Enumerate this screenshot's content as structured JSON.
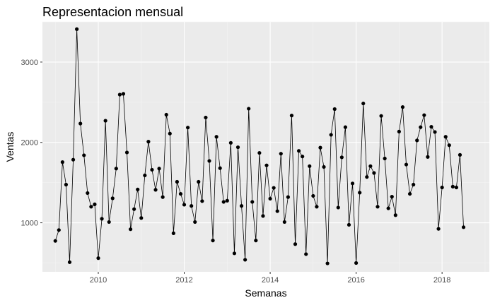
{
  "chart_data": {
    "type": "line",
    "title": "Representacion mensual",
    "xlabel": "Semanas",
    "ylabel": "Ventas",
    "xlim": [
      2008.7,
      2019.1
    ],
    "ylim": [
      390,
      3500
    ],
    "x_ticks": [
      2010,
      2012,
      2014,
      2016,
      2018
    ],
    "x_tick_labels": [
      "2010",
      "2012",
      "2014",
      "2016",
      "2018"
    ],
    "y_ticks": [
      1000,
      2000,
      3000
    ],
    "y_tick_labels": [
      "1000",
      "2000",
      "3000"
    ],
    "grid": true,
    "legend": "none",
    "colors": {
      "panel": "#ebebeb",
      "grid_major": "#ffffff",
      "grid_minor": "#f5f5f5",
      "line": "#000000",
      "point": "#000000"
    },
    "series": [
      {
        "x_start": 2009.0,
        "x_step": 0.0833333,
        "values": [
          775,
          910,
          1755,
          1475,
          510,
          1785,
          3410,
          2235,
          1840,
          1370,
          1200,
          1230,
          560,
          1050,
          2270,
          1010,
          1305,
          1675,
          2595,
          2605,
          1875,
          920,
          1170,
          1415,
          1060,
          1590,
          2010,
          1660,
          1410,
          1675,
          1320,
          2345,
          2110,
          870,
          1510,
          1360,
          1225,
          2185,
          1210,
          1010,
          1510,
          1270,
          2310,
          1770,
          780,
          2070,
          1680,
          1260,
          1275,
          1995,
          620,
          1940,
          1210,
          540,
          2420,
          1260,
          780,
          1870,
          1085,
          1715,
          1300,
          1435,
          1145,
          1860,
          1010,
          1320,
          2335,
          735,
          1895,
          1825,
          610,
          1705,
          1335,
          1200,
          1935,
          1695,
          495,
          2095,
          2415,
          1190,
          1815,
          2190,
          975,
          1490,
          500,
          1375,
          2485,
          1570,
          1705,
          1620,
          1200,
          2330,
          1800,
          1180,
          1325,
          1095,
          2135,
          2440,
          1725,
          1360,
          1475,
          2025,
          2190,
          2340,
          1820,
          2195,
          2130,
          925,
          1440,
          2070,
          1965,
          1450,
          1440,
          1845,
          945
        ]
      }
    ]
  }
}
